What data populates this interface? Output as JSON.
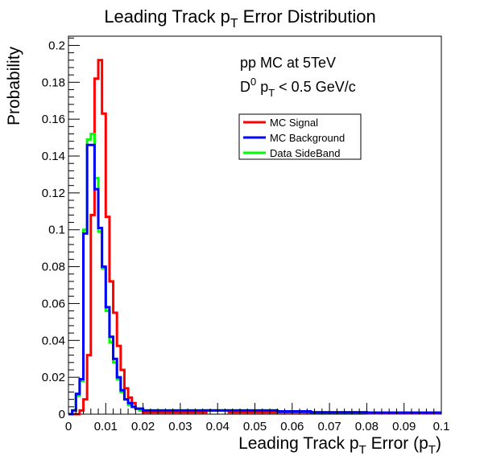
{
  "chart_data": {
    "type": "line",
    "title": "Leading Track p_T Error Distribution",
    "xlabel": "Leading Track p_T Error (p_T)",
    "ylabel": "Probability",
    "xlim": [
      0,
      0.1
    ],
    "ylim": [
      0,
      0.205
    ],
    "x_ticks": [
      0,
      0.01,
      0.02,
      0.03,
      0.04,
      0.05,
      0.06,
      0.07,
      0.08,
      0.09,
      0.1
    ],
    "x_tick_labels": [
      "0",
      "0.01",
      "0.02",
      "0.03",
      "0.04",
      "0.05",
      "0.06",
      "0.07",
      "0.08",
      "0.09",
      "0.1"
    ],
    "y_ticks": [
      0,
      0.02,
      0.04,
      0.06,
      0.08,
      0.1,
      0.12,
      0.14,
      0.16,
      0.18,
      0.2
    ],
    "y_tick_labels": [
      "0",
      "0.02",
      "0.04",
      "0.06",
      "0.08",
      "0.1",
      "0.12",
      "0.14",
      "0.16",
      "0.18",
      "0.2"
    ],
    "grid": false,
    "legend_placement": "upper-right",
    "annotations": [
      "pp MC at 5TeV",
      "D^0 p_T < 0.5 GeV/c"
    ],
    "bin_width": 0.001,
    "bin_edges_start": 0.0,
    "series": [
      {
        "name": "MC Signal",
        "color": "#ff0000",
        "values": [
          0,
          0,
          0,
          0.002,
          0.008,
          0.032,
          0.108,
          0.182,
          0.192,
          0.163,
          0.107,
          0.072,
          0.055,
          0.037,
          0.024,
          0.014,
          0.009,
          0.006,
          0.003,
          0.002,
          0.001,
          0.001,
          0.001,
          0.001,
          0.001,
          0.001,
          0.001,
          0.001,
          0.001,
          0.001,
          0.001,
          0.001,
          0.001,
          0.001,
          0.001,
          0.001,
          0.001,
          0.002,
          0.002,
          0.002,
          0.002,
          0.002,
          0.002,
          0.001,
          0.001,
          0.001,
          0.001,
          0.001,
          0.001,
          0.001,
          0.001,
          0.001,
          0.001,
          0.001,
          0.001,
          0.001,
          0.001,
          0.001,
          0.001,
          0.001,
          0.001,
          0.001,
          0.001,
          0.001,
          0.001,
          0.001,
          0.001,
          0.001,
          0.001,
          0.001,
          0.001,
          0.001,
          0.001,
          0.001,
          0.001,
          0.001,
          0.001,
          0.001,
          0.001,
          0.001,
          0.0005,
          0.0005,
          0.0005,
          0.0005,
          0.0005,
          0.0005,
          0.0005,
          0.0005,
          0.0005,
          0.0005,
          0.0005,
          0.0005,
          0.0005,
          0.0005,
          0.0005,
          0.0005,
          0.0005,
          0.0005,
          0.0005,
          0.0005
        ]
      },
      {
        "name": "MC Background",
        "color": "#0000ff",
        "values": [
          0,
          0.002,
          0.011,
          0.019,
          0.098,
          0.146,
          0.146,
          0.122,
          0.101,
          0.08,
          0.058,
          0.042,
          0.03,
          0.02,
          0.013,
          0.008,
          0.006,
          0.004,
          0.003,
          0.003,
          0.002,
          0.002,
          0.002,
          0.002,
          0.002,
          0.002,
          0.002,
          0.002,
          0.002,
          0.002,
          0.002,
          0.002,
          0.002,
          0.002,
          0.002,
          0.002,
          0.002,
          0.002,
          0.002,
          0.002,
          0.002,
          0.002,
          0.002,
          0.002,
          0.002,
          0.002,
          0.002,
          0.002,
          0.002,
          0.002,
          0.002,
          0.002,
          0.002,
          0.002,
          0.002,
          0.002,
          0.0015,
          0.0015,
          0.0015,
          0.0015,
          0.0015,
          0.0015,
          0.0015,
          0.0015,
          0.0015,
          0.001,
          0.001,
          0.001,
          0.001,
          0.001,
          0.001,
          0.001,
          0.001,
          0.001,
          0.001,
          0.001,
          0.001,
          0.001,
          0.001,
          0.001,
          0.0008,
          0.0008,
          0.0008,
          0.0008,
          0.0008,
          0.0008,
          0.0008,
          0.0008,
          0.0008,
          0.0008,
          0.0008,
          0.0008,
          0.0008,
          0.0008,
          0.0008,
          0.0008,
          0.0008,
          0.0008,
          0.0008,
          0.0008
        ]
      },
      {
        "name": "Data SideBand",
        "color": "#00ff00",
        "values": [
          0,
          0.002,
          0.01,
          0.018,
          0.1,
          0.149,
          0.152,
          0.128,
          0.099,
          0.079,
          0.056,
          0.039,
          0.028,
          0.019,
          0.012,
          0.008,
          0.005,
          0.004,
          0.003,
          0.002,
          0.002,
          0.002,
          0.002,
          0.002,
          0.002,
          0.002,
          0.002,
          0.002,
          0.002,
          0.002,
          0.002,
          0.002,
          0.002,
          0.002,
          0.002,
          0.002,
          0.002,
          0.002,
          0.002,
          0.002,
          0.002,
          0.002,
          0.002,
          0.002,
          0.002,
          0.002,
          0.002,
          0.002,
          0.002,
          0.002,
          0.002,
          0.002,
          0.002,
          0.002,
          0.002,
          0.002,
          0.0015,
          0.0015,
          0.0015,
          0.0015,
          0.0015,
          0.0015,
          0.0015,
          0.0015,
          0.0015,
          0.001,
          0.001,
          0.001,
          0.001,
          0.001,
          0.001,
          0.001,
          0.001,
          0.001,
          0.001,
          0.001,
          0.001,
          0.001,
          0.001,
          0.001,
          0.0008,
          0.0008,
          0.0008,
          0.0008,
          0.0008,
          0.0008,
          0.0008,
          0.0008,
          0.0008,
          0.0008,
          0.0008,
          0.0008,
          0.0008,
          0.0008,
          0.0008,
          0.0008,
          0.0008,
          0.0008,
          0.0008,
          0.0008
        ]
      }
    ]
  }
}
